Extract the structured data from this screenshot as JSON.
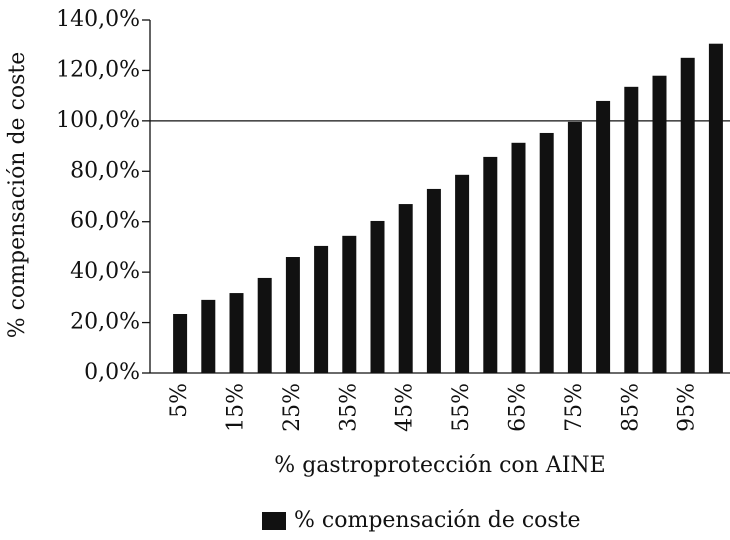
{
  "chart_data": {
    "type": "bar",
    "y_label": "% compensación de coste",
    "x_label": "% gastroprotección con AINE",
    "categories": [
      "5%",
      null,
      "15%",
      null,
      "25%",
      null,
      "35%",
      null,
      "45%",
      null,
      "55%",
      null,
      "65%",
      null,
      "75%",
      null,
      "85%",
      null,
      "95%",
      null
    ],
    "series": [
      {
        "name": "% compensación de coste",
        "color": "#111111",
        "values": [
          23.4,
          29,
          31.7,
          37.7,
          46,
          50.4,
          54.4,
          60.3,
          67,
          73,
          78.6,
          85.7,
          91.3,
          95.2,
          99.6,
          107.9,
          113.5,
          117.9,
          125,
          130.6
        ]
      }
    ],
    "reference_line": 100,
    "ylim": [
      0,
      140
    ],
    "yticks": [
      {
        "value": 0,
        "label": "0,0%"
      },
      {
        "value": 20,
        "label": "20,0%"
      },
      {
        "value": 40,
        "label": "40,0%"
      },
      {
        "value": 60,
        "label": "60,0%"
      },
      {
        "value": 80,
        "label": "80,0%"
      },
      {
        "value": 100,
        "label": "100,0%"
      },
      {
        "value": 120,
        "label": "120,0%"
      },
      {
        "value": 140,
        "label": "140,0%"
      }
    ],
    "legend": "bottom"
  }
}
